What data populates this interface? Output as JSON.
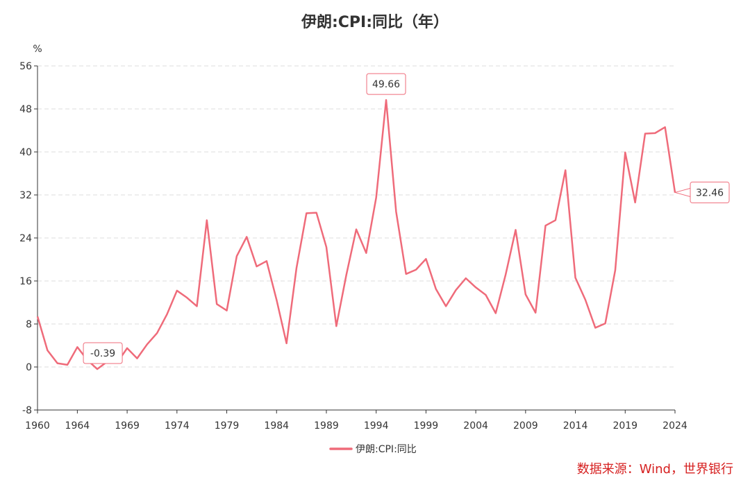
{
  "title": "伊朗:CPI:同比（年）",
  "source_note": "数据来源：Wind，世界银行",
  "colors": {
    "series": "#ef6b7a",
    "axis": "#333333",
    "grid": "#dddddd",
    "text": "#333333",
    "source": "#d62020"
  },
  "chart_data": {
    "type": "line",
    "ylabel": "%",
    "xlabel": "",
    "xlim": [
      1960,
      2024
    ],
    "ylim": [
      -8,
      56
    ],
    "yticks": [
      -8,
      0,
      8,
      16,
      24,
      32,
      40,
      48,
      56
    ],
    "xticks": [
      1960,
      1964,
      1969,
      1974,
      1979,
      1984,
      1989,
      1994,
      1999,
      2004,
      2009,
      2014,
      2019,
      2024
    ],
    "grid": "horizontal dashed",
    "legend_position": "bottom-center",
    "series": [
      {
        "name": "伊朗:CPI:同比",
        "x": [
          1960,
          1961,
          1962,
          1963,
          1964,
          1965,
          1966,
          1967,
          1968,
          1969,
          1970,
          1971,
          1972,
          1973,
          1974,
          1975,
          1976,
          1977,
          1978,
          1979,
          1980,
          1981,
          1982,
          1983,
          1984,
          1985,
          1986,
          1987,
          1988,
          1989,
          1990,
          1991,
          1992,
          1993,
          1994,
          1995,
          1996,
          1997,
          1998,
          1999,
          2000,
          2001,
          2002,
          2003,
          2004,
          2005,
          2006,
          2007,
          2008,
          2009,
          2010,
          2011,
          2012,
          2013,
          2014,
          2015,
          2016,
          2017,
          2018,
          2019,
          2020,
          2021,
          2022,
          2023,
          2024
        ],
        "values": [
          9.4,
          3.1,
          0.7,
          0.4,
          3.7,
          1.3,
          -0.39,
          1.0,
          0.8,
          3.5,
          1.6,
          4.2,
          6.3,
          9.8,
          14.2,
          12.9,
          11.3,
          27.3,
          11.7,
          10.5,
          20.6,
          24.2,
          18.7,
          19.7,
          12.5,
          4.4,
          18.4,
          28.6,
          28.7,
          22.3,
          7.6,
          17.1,
          25.6,
          21.2,
          31.5,
          49.66,
          28.9,
          17.3,
          18.1,
          20.1,
          14.5,
          11.3,
          14.3,
          16.5,
          14.8,
          13.4,
          10.0,
          17.2,
          25.5,
          13.5,
          10.1,
          26.3,
          27.3,
          36.6,
          16.6,
          12.5,
          7.3,
          8.1,
          18.0,
          39.9,
          30.6,
          43.4,
          43.5,
          44.6,
          32.46
        ]
      }
    ],
    "annotations": [
      {
        "x": 1966,
        "value": -0.39,
        "label": "-0.39"
      },
      {
        "x": 1995,
        "value": 49.66,
        "label": "49.66"
      },
      {
        "x": 2024,
        "value": 32.46,
        "label": "32.46"
      }
    ]
  }
}
